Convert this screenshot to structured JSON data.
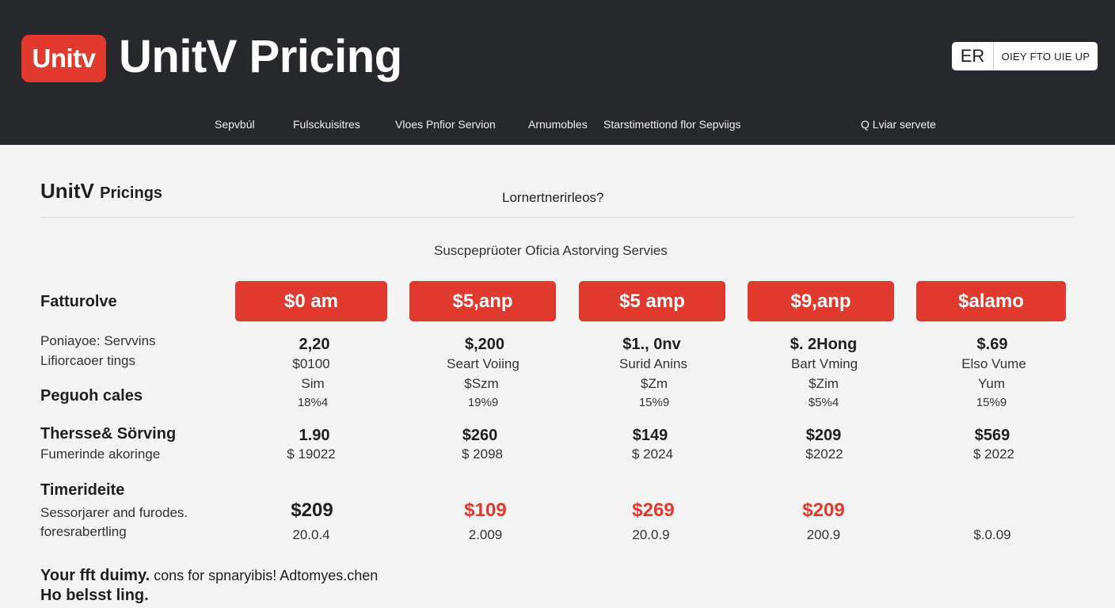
{
  "header": {
    "logo_text": "Unitv",
    "title": "UnitV Pricing",
    "lang_code": "ER",
    "signup_label": "OIEY FTO UIE UP",
    "nav": [
      "Sepvbúl",
      "Fulsckuisitres",
      "Vloes Pnfior Servion",
      "Arnumobles",
      "Starstimettiond flor Sepviigs"
    ],
    "search_label": "Q Lviar servete"
  },
  "section": {
    "title_main": "UnitV",
    "title_small": "Pricings",
    "question": "Lornertnerirleos?",
    "subtitle": "Suscpeprüoter Oficia Astorving Servies"
  },
  "table": {
    "row_labels": {
      "feature": "Fatturolve",
      "line1": "Poniayoe: Servvins",
      "line2": "Lifiorcaoer tings",
      "group": "Peguoh cales",
      "third": "Thersse& Sörving",
      "third_sub": "Fumerinde akoringe",
      "timer": "Timerideite",
      "timer_sub1": "Sessorjarer and furodes.",
      "timer_sub2": "foresrabertling"
    },
    "plans": [
      {
        "price_label": "$0 am",
        "r1": "2,20",
        "r2": "$0100",
        "r3": "Sim",
        "r4": "18%4",
        "t1": "1.90",
        "t2": "$ 19022",
        "big": "$209",
        "big_red": false,
        "last": "20.0.4"
      },
      {
        "price_label": "$5,anp",
        "r1": "$,200",
        "r2": "Seart Voiing",
        "r3": "$Szm",
        "r4": "19%9",
        "t1": "$260",
        "t2": "$ 2098",
        "big": "$109",
        "big_red": true,
        "last": "2.009"
      },
      {
        "price_label": "$5 amp",
        "r1": "$1., 0nv",
        "r2": "Surid Anins",
        "r3": "$Zm",
        "r4": "15%9",
        "t1": "$149",
        "t2": "$ 2024",
        "big": "$269",
        "big_red": true,
        "last": "20.0.9"
      },
      {
        "price_label": "$9,anp",
        "r1": "$. 2Hong",
        "r2": "Bart Vming",
        "r3": "$Zim",
        "r4": "$5%4",
        "t1": "$209",
        "t2": "$2022",
        "big": "$209",
        "big_red": true,
        "last": "200.9"
      },
      {
        "price_label": "$alamo",
        "r1": "$.69",
        "r2": "Elso Vume",
        "r3": "Yum",
        "r4": "15%9",
        "t1": "$569",
        "t2": "$ 2022",
        "big": "",
        "big_red": false,
        "last": "$.0.09"
      }
    ]
  },
  "footer": {
    "bold_part": "Your fft duimy.",
    "rest": " cons for spnaryibis! Adtomyes.chen",
    "line2": "Ho belsst ling."
  },
  "colors": {
    "header_bg": "#26282b",
    "accent_red": "#e03a2f",
    "page_bg": "#f4f4f4"
  }
}
